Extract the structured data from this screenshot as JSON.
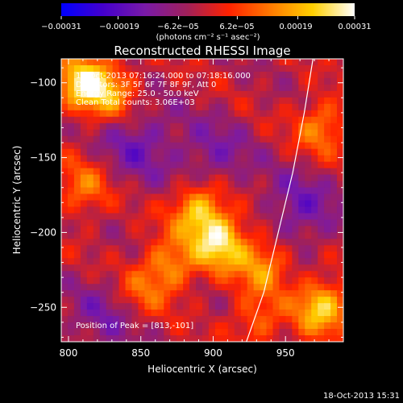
{
  "chart_data": {
    "type": "heatmap",
    "title": "Reconstructed RHESSI Image",
    "xlabel": "Heliocentric X (arcsec)",
    "ylabel": "Heliocentric Y (arcsec)",
    "xlim": [
      795,
      990
    ],
    "ylim": [
      -273,
      -84
    ],
    "x_ticks": [
      800,
      850,
      900,
      950
    ],
    "y_ticks": [
      -250,
      -200,
      -150,
      -100
    ],
    "x_tick_labels": [
      "800",
      "850",
      "900",
      "950"
    ],
    "y_tick_labels": [
      "−250",
      "−200",
      "−150",
      "−100"
    ],
    "colorbar": {
      "tick_values": [
        -0.00031,
        -0.00019,
        -6.2e-05,
        6.2e-05,
        0.00019,
        0.00031
      ],
      "tick_labels": [
        "−0.00031",
        "−0.00019",
        "−6.2e−05",
        "6.2e−05",
        "0.00019",
        "0.00031"
      ],
      "units_label": "(photons cm⁻² s⁻¹ asec⁻²)",
      "colors": [
        "#0000ff",
        "#4400cc",
        "#7a1aa8",
        "#a0205a",
        "#ff2200",
        "#ff7a00",
        "#ffd000",
        "#ffffff"
      ]
    },
    "annotations": [
      "18-Oct-2013 07:16:24.000 to 07:18:16.000",
      "Detectors: 3F 5F 6F 7F 8F 9F, Att 0",
      "Energy Range: 25.0 - 50.0 keV",
      "Clean    Total counts: 3.06E+03"
    ],
    "peak_label": "Position of Peak = [813,-101]",
    "peak": [
      813,
      -101
    ],
    "limb": [
      [
        923,
        -273
      ],
      [
        935,
        -240
      ],
      [
        945,
        -200
      ],
      [
        955,
        -160
      ],
      [
        963,
        -120
      ],
      [
        969,
        -84
      ]
    ],
    "sources": [
      {
        "x": 812,
        "y": -100,
        "value": 0.0003
      },
      {
        "x": 832,
        "y": -108,
        "value": 0.00014
      },
      {
        "x": 975,
        "y": -130,
        "value": 0.00016
      },
      {
        "x": 810,
        "y": -170,
        "value": 0.00014
      },
      {
        "x": 890,
        "y": -185,
        "value": 0.00024
      },
      {
        "x": 905,
        "y": -207,
        "value": 0.00027
      },
      {
        "x": 870,
        "y": -222,
        "value": 0.00017
      },
      {
        "x": 935,
        "y": -222,
        "value": 0.00018
      },
      {
        "x": 975,
        "y": -250,
        "value": 0.00025
      },
      {
        "x": 930,
        "y": -260,
        "value": 0.00012
      },
      {
        "x": 850,
        "y": -240,
        "value": 0.00011
      }
    ],
    "minima": [
      {
        "x": 848,
        "y": -140,
        "value": -0.00012
      },
      {
        "x": 900,
        "y": -150,
        "value": -0.0001
      },
      {
        "x": 960,
        "y": -185,
        "value": -0.00012
      },
      {
        "x": 825,
        "y": -255,
        "value": -9e-05
      }
    ]
  },
  "timestamp": "18-Oct-2013 15:31"
}
